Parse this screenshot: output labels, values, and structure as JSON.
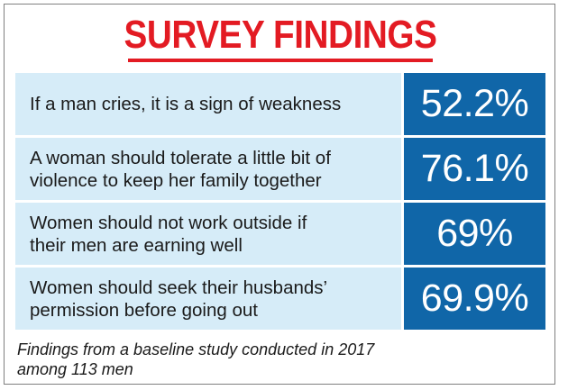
{
  "title": "SURVEY FINDINGS",
  "colors": {
    "title": "#e31b23",
    "label_background": "#d6ecf8",
    "value_background": "#1066a8",
    "value_text": "#ffffff"
  },
  "chart_data": {
    "type": "table",
    "title": "SURVEY FINDINGS",
    "rows": [
      {
        "label_lines": [
          "If a man cries, it is a sign of weakness"
        ],
        "value": 52.2,
        "display": "52.2%"
      },
      {
        "label_lines": [
          "A woman should tolerate a little bit of",
          "violence to keep her family together"
        ],
        "value": 76.1,
        "display": "76.1%"
      },
      {
        "label_lines": [
          "Women should not work outside if",
          "their men are earning well"
        ],
        "value": 69,
        "display": "69%"
      },
      {
        "label_lines": [
          "Women should seek their husbands’",
          "permission before going out"
        ],
        "value": 69.9,
        "display": "69.9%"
      }
    ],
    "unit": "%"
  },
  "footnote_lines": [
    "Findings from a baseline study conducted in 2017",
    "among 113 men"
  ]
}
